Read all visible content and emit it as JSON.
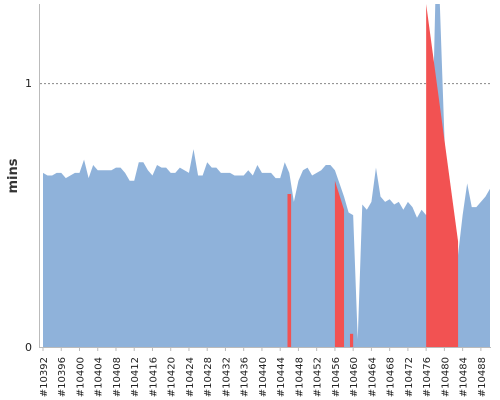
{
  "chart_data": {
    "type": "area",
    "title": "",
    "xlabel": "",
    "ylabel": "mins",
    "ylim": [
      0,
      1.3
    ],
    "y_ticks": [
      0,
      1
    ],
    "y_ticks_text": [
      "0",
      "1"
    ],
    "reference_line": {
      "value": 1,
      "style": "dotted"
    },
    "x_tick_labels": [
      "#10392",
      "#10396",
      "#10400",
      "#10404",
      "#10408",
      "#10412",
      "#10416",
      "#10420",
      "#10424",
      "#10428",
      "#10432",
      "#10436",
      "#10440",
      "#10444",
      "#10448",
      "#10452",
      "#10456",
      "#10460",
      "#10464",
      "#10468",
      "#10472",
      "#10476",
      "#10480",
      "#10484",
      "#10488"
    ],
    "x_start": 10392,
    "x": [
      10392,
      10393,
      10394,
      10395,
      10396,
      10397,
      10398,
      10399,
      10400,
      10401,
      10402,
      10403,
      10404,
      10405,
      10406,
      10407,
      10408,
      10409,
      10410,
      10411,
      10412,
      10413,
      10414,
      10415,
      10416,
      10417,
      10418,
      10419,
      10420,
      10421,
      10422,
      10423,
      10424,
      10425,
      10426,
      10427,
      10428,
      10429,
      10430,
      10431,
      10432,
      10433,
      10434,
      10435,
      10436,
      10437,
      10438,
      10439,
      10440,
      10441,
      10442,
      10443,
      10444,
      10445,
      10446,
      10447,
      10448,
      10449,
      10450,
      10451,
      10452,
      10453,
      10454,
      10455,
      10456,
      10457,
      10458,
      10459,
      10460,
      10461,
      10462,
      10463,
      10464,
      10465,
      10466,
      10467,
      10468,
      10469,
      10470,
      10471,
      10472,
      10473,
      10474,
      10475,
      10476,
      10477,
      10478,
      10479,
      10480,
      10481,
      10482,
      10483,
      10484,
      10485,
      10486,
      10487,
      10488,
      10489,
      10490
    ],
    "series": [
      {
        "color": "#8fb2da",
        "values": [
          0.66,
          0.65,
          0.65,
          0.66,
          0.66,
          0.64,
          0.65,
          0.66,
          0.66,
          0.71,
          0.64,
          0.69,
          0.67,
          0.67,
          0.67,
          0.67,
          0.68,
          0.68,
          0.66,
          0.63,
          0.63,
          0.7,
          0.7,
          0.67,
          0.65,
          0.69,
          0.68,
          0.68,
          0.66,
          0.66,
          0.68,
          0.67,
          0.66,
          0.75,
          0.65,
          0.65,
          0.7,
          0.68,
          0.68,
          0.66,
          0.66,
          0.66,
          0.65,
          0.65,
          0.65,
          0.67,
          0.65,
          0.69,
          0.66,
          0.66,
          0.66,
          0.64,
          0.64,
          0.7,
          0.66,
          0.55,
          0.63,
          0.67,
          0.68,
          0.65,
          0.66,
          0.67,
          0.69,
          0.69,
          0.67,
          0.62,
          0.57,
          0.51,
          0.5,
          0.03,
          0.54,
          0.52,
          0.55,
          0.68,
          0.57,
          0.55,
          0.56,
          0.54,
          0.55,
          0.52,
          0.55,
          0.53,
          0.49,
          0.52,
          0.5,
          0.55,
          1.3,
          1.3,
          0.8,
          0.4,
          0.08,
          0.35,
          0.5,
          0.62,
          0.53,
          0.53,
          0.55,
          0.57,
          0.6
        ]
      }
    ],
    "highlights": [
      {
        "color": "#f25252",
        "x_from": 10445.6,
        "x_to": 10446.4,
        "values_from": 0.58,
        "values_to": 0.58
      },
      {
        "color": "#f25252",
        "x_from": 10456,
        "x_to": 10458,
        "values_from": 0.63,
        "values_to": 0.52
      },
      {
        "color": "#f25252",
        "x_from": 10459.3,
        "x_to": 10460,
        "values_from": 0.05,
        "values_to": 0.05
      },
      {
        "color": "#f25252",
        "x_from": 10476,
        "x_to": 10483,
        "values_from": 1.3,
        "values_to": 0.4
      }
    ]
  }
}
